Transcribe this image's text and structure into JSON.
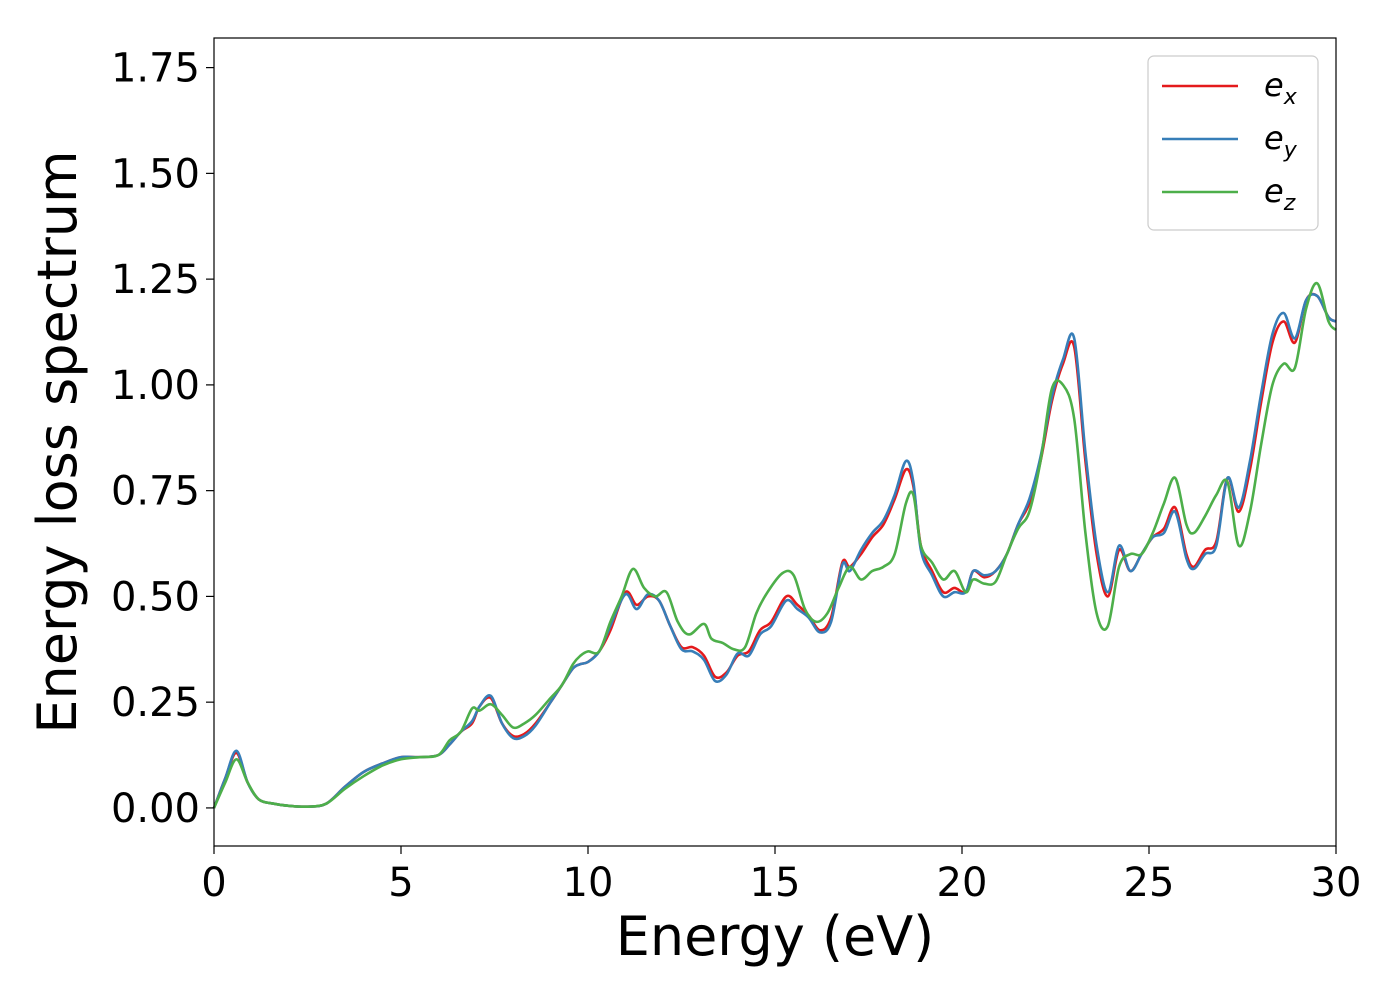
{
  "chart_data": {
    "type": "line",
    "xlabel": "Energy (eV)",
    "ylabel": "Energy loss spectrum",
    "xlim": [
      0,
      30
    ],
    "ylim": [
      -0.09,
      1.82
    ],
    "xticks": [
      0,
      5,
      10,
      15,
      20,
      25,
      30
    ],
    "xtick_labels": [
      "0",
      "5",
      "10",
      "15",
      "20",
      "25",
      "30"
    ],
    "yticks": [
      0.0,
      0.25,
      0.5,
      0.75,
      1.0,
      1.25,
      1.5,
      1.75
    ],
    "ytick_labels": [
      "0.00",
      "0.25",
      "0.50",
      "0.75",
      "1.00",
      "1.25",
      "1.50",
      "1.75"
    ],
    "grid": false,
    "legend_position": "top-right",
    "series": [
      {
        "name": "e",
        "subscript": "x",
        "color": "#e41a1c",
        "x": [
          0,
          0.3,
          0.6,
          0.9,
          1.2,
          1.6,
          2.0,
          2.5,
          3.0,
          3.5,
          4.0,
          4.5,
          5.0,
          5.5,
          6.0,
          6.3,
          6.6,
          6.9,
          7.1,
          7.4,
          7.7,
          8.0,
          8.3,
          8.6,
          9.0,
          9.3,
          9.6,
          9.8,
          10.0,
          10.3,
          10.6,
          11.0,
          11.3,
          11.6,
          11.9,
          12.2,
          12.5,
          12.8,
          13.1,
          13.4,
          13.7,
          14.0,
          14.3,
          14.6,
          14.9,
          15.3,
          15.6,
          15.9,
          16.2,
          16.5,
          16.8,
          17.0,
          17.3,
          17.6,
          17.9,
          18.2,
          18.5,
          18.7,
          18.9,
          19.2,
          19.5,
          19.8,
          20.1,
          20.3,
          20.6,
          20.9,
          21.2,
          21.5,
          21.8,
          22.1,
          22.4,
          22.7,
          23.0,
          23.3,
          23.6,
          23.9,
          24.2,
          24.5,
          24.8,
          25.1,
          25.4,
          25.7,
          26.0,
          26.2,
          26.5,
          26.8,
          27.1,
          27.4,
          27.7,
          28.0,
          28.3,
          28.6,
          28.9,
          29.2,
          29.5,
          29.8,
          30.0
        ],
        "y": [
          0.0,
          0.07,
          0.13,
          0.06,
          0.02,
          0.01,
          0.005,
          0.003,
          0.01,
          0.05,
          0.085,
          0.105,
          0.12,
          0.12,
          0.125,
          0.15,
          0.18,
          0.2,
          0.24,
          0.26,
          0.2,
          0.17,
          0.175,
          0.2,
          0.25,
          0.29,
          0.33,
          0.34,
          0.345,
          0.37,
          0.42,
          0.51,
          0.48,
          0.5,
          0.49,
          0.43,
          0.38,
          0.38,
          0.36,
          0.31,
          0.32,
          0.36,
          0.37,
          0.42,
          0.44,
          0.5,
          0.48,
          0.455,
          0.42,
          0.45,
          0.58,
          0.57,
          0.6,
          0.64,
          0.67,
          0.73,
          0.8,
          0.76,
          0.62,
          0.56,
          0.51,
          0.52,
          0.51,
          0.56,
          0.545,
          0.56,
          0.6,
          0.67,
          0.72,
          0.82,
          0.96,
          1.05,
          1.09,
          0.82,
          0.6,
          0.5,
          0.61,
          0.56,
          0.6,
          0.64,
          0.66,
          0.71,
          0.6,
          0.57,
          0.61,
          0.63,
          0.78,
          0.7,
          0.8,
          0.96,
          1.1,
          1.15,
          1.1,
          1.2,
          1.21,
          1.16,
          1.15
        ]
      },
      {
        "name": "e",
        "subscript": "y",
        "color": "#377eb8",
        "x": [
          0,
          0.3,
          0.6,
          0.9,
          1.2,
          1.6,
          2.0,
          2.5,
          3.0,
          3.5,
          4.0,
          4.5,
          5.0,
          5.5,
          6.0,
          6.3,
          6.6,
          6.9,
          7.1,
          7.4,
          7.7,
          8.0,
          8.3,
          8.6,
          9.0,
          9.3,
          9.6,
          9.8,
          10.0,
          10.3,
          10.6,
          11.0,
          11.3,
          11.6,
          11.9,
          12.2,
          12.5,
          12.8,
          13.1,
          13.4,
          13.7,
          14.0,
          14.3,
          14.6,
          14.9,
          15.3,
          15.6,
          15.9,
          16.2,
          16.5,
          16.8,
          17.0,
          17.3,
          17.6,
          17.9,
          18.2,
          18.5,
          18.7,
          18.9,
          19.2,
          19.5,
          19.8,
          20.1,
          20.3,
          20.6,
          20.9,
          21.2,
          21.5,
          21.8,
          22.1,
          22.4,
          22.7,
          23.0,
          23.3,
          23.6,
          23.9,
          24.2,
          24.5,
          24.8,
          25.1,
          25.4,
          25.7,
          26.0,
          26.2,
          26.5,
          26.8,
          27.1,
          27.4,
          27.7,
          28.0,
          28.3,
          28.6,
          28.9,
          29.2,
          29.5,
          29.8,
          30.0
        ],
        "y": [
          0.0,
          0.07,
          0.135,
          0.06,
          0.02,
          0.01,
          0.005,
          0.003,
          0.01,
          0.05,
          0.085,
          0.105,
          0.12,
          0.12,
          0.125,
          0.15,
          0.18,
          0.205,
          0.24,
          0.265,
          0.2,
          0.165,
          0.17,
          0.195,
          0.25,
          0.29,
          0.33,
          0.34,
          0.345,
          0.37,
          0.43,
          0.505,
          0.47,
          0.505,
          0.49,
          0.43,
          0.375,
          0.37,
          0.35,
          0.3,
          0.315,
          0.365,
          0.36,
          0.41,
          0.43,
          0.49,
          0.47,
          0.45,
          0.415,
          0.44,
          0.575,
          0.56,
          0.61,
          0.65,
          0.68,
          0.74,
          0.82,
          0.77,
          0.61,
          0.55,
          0.5,
          0.51,
          0.51,
          0.56,
          0.55,
          0.56,
          0.6,
          0.67,
          0.73,
          0.83,
          0.97,
          1.06,
          1.11,
          0.84,
          0.62,
          0.51,
          0.62,
          0.56,
          0.6,
          0.64,
          0.65,
          0.7,
          0.59,
          0.565,
          0.6,
          0.62,
          0.78,
          0.71,
          0.82,
          0.98,
          1.12,
          1.17,
          1.11,
          1.2,
          1.21,
          1.16,
          1.15
        ]
      },
      {
        "name": "e",
        "subscript": "z",
        "color": "#4daf4a",
        "x": [
          0,
          0.3,
          0.6,
          0.9,
          1.2,
          1.6,
          2.0,
          2.5,
          3.0,
          3.5,
          4.0,
          4.5,
          5.0,
          5.5,
          6.0,
          6.3,
          6.6,
          6.9,
          7.1,
          7.4,
          7.7,
          8.0,
          8.3,
          8.6,
          9.0,
          9.3,
          9.6,
          9.8,
          10.0,
          10.3,
          10.6,
          10.9,
          11.2,
          11.5,
          11.8,
          12.1,
          12.4,
          12.7,
          13.1,
          13.3,
          13.6,
          13.9,
          14.2,
          14.5,
          14.8,
          15.2,
          15.5,
          15.8,
          16.1,
          16.4,
          16.7,
          17.0,
          17.3,
          17.6,
          17.9,
          18.2,
          18.5,
          18.7,
          18.9,
          19.2,
          19.5,
          19.8,
          20.1,
          20.3,
          20.6,
          20.9,
          21.2,
          21.5,
          21.8,
          22.1,
          22.4,
          22.7,
          23.0,
          23.3,
          23.6,
          23.9,
          24.2,
          24.5,
          24.8,
          25.1,
          25.4,
          25.7,
          26.0,
          26.2,
          26.5,
          26.8,
          27.1,
          27.4,
          27.7,
          28.0,
          28.3,
          28.6,
          28.9,
          29.2,
          29.5,
          29.8,
          30.0
        ],
        "y": [
          0.0,
          0.06,
          0.115,
          0.06,
          0.02,
          0.01,
          0.005,
          0.003,
          0.01,
          0.045,
          0.075,
          0.1,
          0.115,
          0.12,
          0.125,
          0.16,
          0.18,
          0.235,
          0.23,
          0.245,
          0.22,
          0.19,
          0.2,
          0.22,
          0.26,
          0.29,
          0.34,
          0.36,
          0.37,
          0.37,
          0.44,
          0.5,
          0.565,
          0.52,
          0.5,
          0.51,
          0.44,
          0.41,
          0.435,
          0.4,
          0.39,
          0.375,
          0.38,
          0.46,
          0.51,
          0.555,
          0.55,
          0.47,
          0.44,
          0.46,
          0.52,
          0.57,
          0.54,
          0.56,
          0.57,
          0.6,
          0.72,
          0.74,
          0.62,
          0.58,
          0.54,
          0.56,
          0.51,
          0.54,
          0.53,
          0.535,
          0.6,
          0.66,
          0.7,
          0.82,
          0.99,
          1.0,
          0.92,
          0.65,
          0.46,
          0.43,
          0.57,
          0.6,
          0.6,
          0.65,
          0.72,
          0.78,
          0.67,
          0.65,
          0.69,
          0.74,
          0.77,
          0.62,
          0.7,
          0.86,
          1.0,
          1.05,
          1.04,
          1.18,
          1.24,
          1.15,
          1.13
        ]
      }
    ]
  }
}
